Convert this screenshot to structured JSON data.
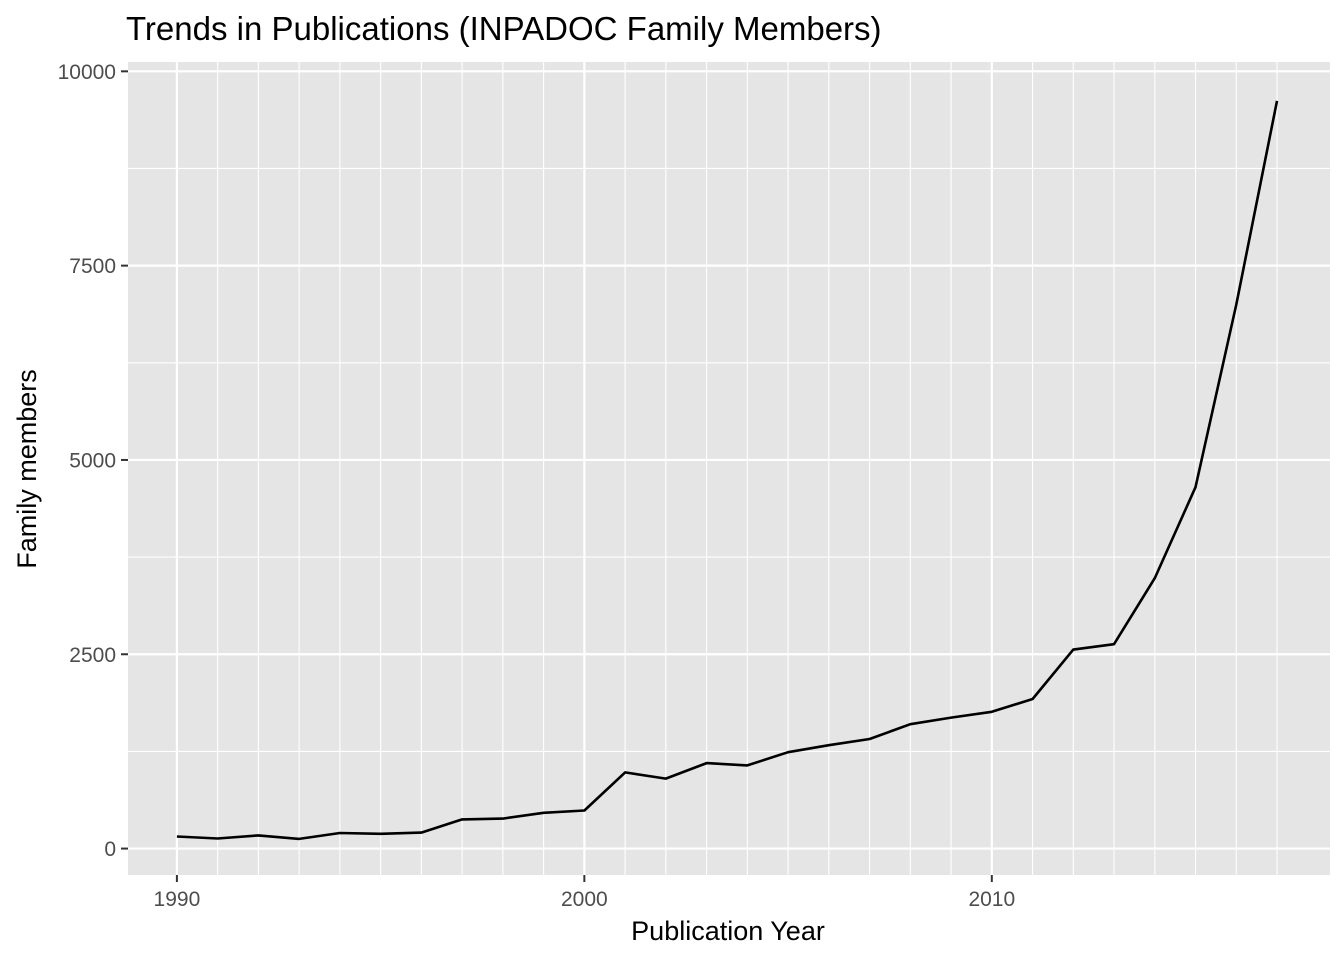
{
  "chart_data": {
    "type": "line",
    "title": "Trends in Publications (INPADOC Family Members)",
    "xlabel": "Publication Year",
    "ylabel": "Family members",
    "xlim": [
      1988.8,
      2018.3
    ],
    "ylim": [
      -340,
      10120
    ],
    "x_ticks": [
      1990,
      2000,
      2010
    ],
    "y_ticks": [
      0,
      2500,
      5000,
      7500,
      10000
    ],
    "x_tick_labels": [
      "1990",
      "2000",
      "2010"
    ],
    "y_tick_labels": [
      "0",
      "2500",
      "5000",
      "7500",
      "10000"
    ],
    "grid": true,
    "colors": {
      "panel": "#e5e5e5",
      "grid": "#ffffff",
      "line": "#000000",
      "tick_text": "#4d4d4d"
    },
    "series": [
      {
        "x": [
          1990,
          1991,
          1992,
          1993,
          1994,
          1995,
          1996,
          1997,
          1998,
          1999,
          2000,
          2001,
          2002,
          2003,
          2004,
          2005,
          2006,
          2007,
          2008,
          2009,
          2010,
          2011,
          2012,
          2013,
          2014,
          2015,
          2016,
          2017
        ],
        "values": [
          155,
          130,
          170,
          125,
          200,
          190,
          205,
          375,
          385,
          460,
          490,
          980,
          900,
          1100,
          1070,
          1240,
          1330,
          1410,
          1600,
          1685,
          1760,
          1925,
          2560,
          2630,
          3480,
          4650,
          7000,
          9620
        ]
      }
    ]
  }
}
